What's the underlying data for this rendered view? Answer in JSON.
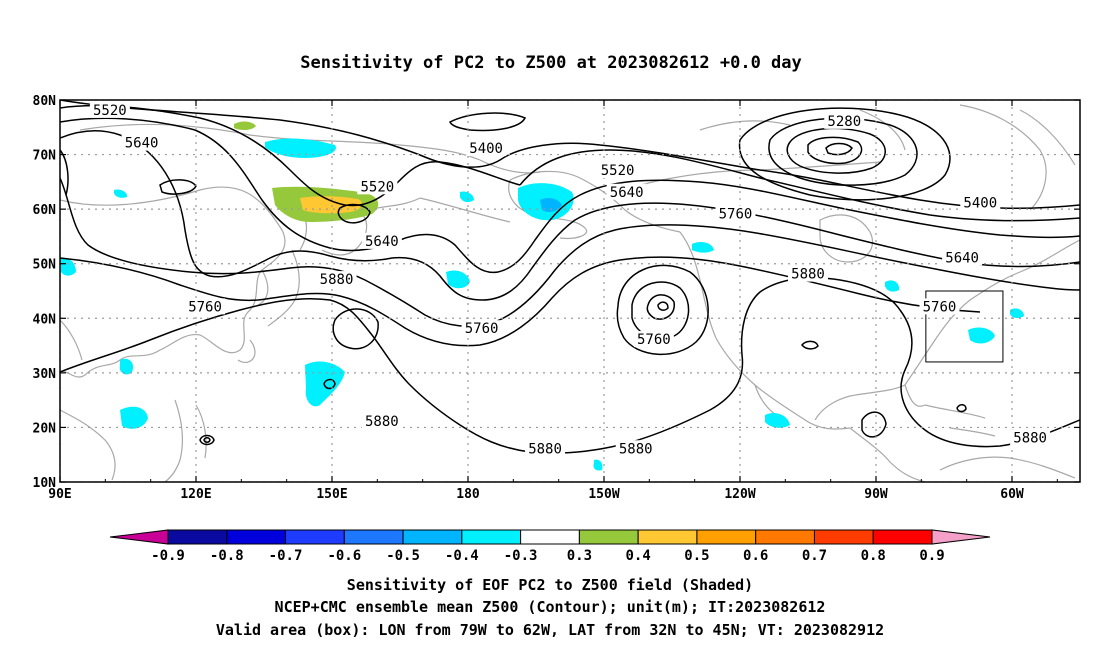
{
  "title": "Sensitivity of PC2 to Z500 at 2023082612 +0.0 day",
  "axes": {
    "x_ticks": [
      {
        "lon": 90,
        "label": "90E"
      },
      {
        "lon": 120,
        "label": "120E"
      },
      {
        "lon": 150,
        "label": "150E"
      },
      {
        "lon": 180,
        "label": "180"
      },
      {
        "lon": 210,
        "label": "150W"
      },
      {
        "lon": 240,
        "label": "120W"
      },
      {
        "lon": 270,
        "label": "90W"
      },
      {
        "lon": 300,
        "label": "60W"
      }
    ],
    "y_ticks": [
      {
        "lat": 80,
        "label": "80N"
      },
      {
        "lat": 70,
        "label": "70N"
      },
      {
        "lat": 60,
        "label": "60N"
      },
      {
        "lat": 50,
        "label": "50N"
      },
      {
        "lat": 40,
        "label": "40N"
      },
      {
        "lat": 30,
        "label": "30N"
      },
      {
        "lat": 20,
        "label": "20N"
      },
      {
        "lat": 10,
        "label": "10N"
      }
    ],
    "lon_range": [
      90,
      315
    ],
    "lat_range": [
      10,
      80
    ],
    "grid": true
  },
  "contour_labels": [
    {
      "text": "5520",
      "lon": 101,
      "lat": 78
    },
    {
      "text": "5640",
      "lon": 108,
      "lat": 72
    },
    {
      "text": "5400",
      "lon": 184,
      "lat": 71
    },
    {
      "text": "5280",
      "lon": 263,
      "lat": 76
    },
    {
      "text": "5520",
      "lon": 160,
      "lat": 64
    },
    {
      "text": "5520",
      "lon": 213,
      "lat": 67
    },
    {
      "text": "5640",
      "lon": 215,
      "lat": 63
    },
    {
      "text": "5760",
      "lon": 239,
      "lat": 59
    },
    {
      "text": "5400",
      "lon": 293,
      "lat": 61
    },
    {
      "text": "5640",
      "lon": 161,
      "lat": 54
    },
    {
      "text": "5880",
      "lon": 151,
      "lat": 47
    },
    {
      "text": "5760",
      "lon": 122,
      "lat": 42
    },
    {
      "text": "5760",
      "lon": 183,
      "lat": 38
    },
    {
      "text": "5760",
      "lon": 221,
      "lat": 36
    },
    {
      "text": "5880",
      "lon": 255,
      "lat": 48
    },
    {
      "text": "5640",
      "lon": 289,
      "lat": 51
    },
    {
      "text": "5760",
      "lon": 284,
      "lat": 42
    },
    {
      "text": "5880",
      "lon": 161,
      "lat": 21
    },
    {
      "text": "5880",
      "lon": 197,
      "lat": 16
    },
    {
      "text": "5880",
      "lon": 217,
      "lat": 16
    },
    {
      "text": "5880",
      "lon": 304,
      "lat": 18
    }
  ],
  "valid_box": {
    "lon_min": 281,
    "lon_max": 298,
    "lat_min": 32,
    "lat_max": 45
  },
  "colorbar": {
    "labels": [
      "-0.9",
      "-0.8",
      "-0.7",
      "-0.6",
      "-0.5",
      "-0.4",
      "-0.3",
      "0.3",
      "0.4",
      "0.5",
      "0.6",
      "0.7",
      "0.8",
      "0.9"
    ],
    "low_end_color": "#c80096",
    "high_end_color": "#f5a0c8",
    "colors": [
      "#0a0aa0",
      "#0000dc",
      "#1e3cff",
      "#1e78ff",
      "#00b4ff",
      "#00f0ff",
      "#ffffff",
      "#96c83c",
      "#ffc832",
      "#ffa000",
      "#ff7800",
      "#ff3c00",
      "#ff0000"
    ]
  },
  "caption": [
    "Sensitivity of EOF PC2 to Z500 field (Shaded)",
    "NCEP+CMC ensemble mean Z500 (Contour); unit(m); IT:2023082612",
    "Valid area (box): LON from 79W to 62W, LAT from 32N to 45N; VT: 2023082912"
  ]
}
